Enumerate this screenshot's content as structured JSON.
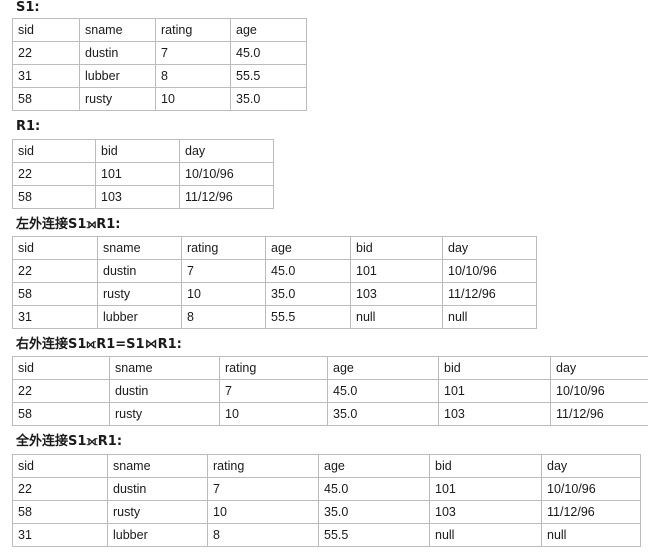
{
  "sections": [
    {
      "heading": "S1:",
      "columns": [
        "sid",
        "sname",
        "rating",
        "age"
      ],
      "rows": [
        [
          "22",
          "dustin",
          "7",
          "45.0"
        ],
        [
          "31",
          "lubber",
          "8",
          "55.5"
        ],
        [
          "58",
          "rusty",
          "10",
          "35.0"
        ]
      ]
    },
    {
      "heading": "R1:",
      "columns": [
        "sid",
        "bid",
        "day"
      ],
      "rows": [
        [
          "22",
          "101",
          "10/10/96"
        ],
        [
          "58",
          "103",
          "11/12/96"
        ]
      ]
    },
    {
      "heading": "左外连接S1⟕R1:",
      "columns": [
        "sid",
        "sname",
        "rating",
        "age",
        "bid",
        "day"
      ],
      "rows": [
        [
          "22",
          "dustin",
          "7",
          "45.0",
          "101",
          "10/10/96"
        ],
        [
          "58",
          "rusty",
          "10",
          "35.0",
          "103",
          "11/12/96"
        ],
        [
          "31",
          "lubber",
          "8",
          "55.5",
          "null",
          "null"
        ]
      ]
    },
    {
      "heading": "右外连接S1⟖R1=S1⋈R1:",
      "columns": [
        "sid",
        "sname",
        "rating",
        "age",
        "bid",
        "day"
      ],
      "rows": [
        [
          "22",
          "dustin",
          "7",
          "45.0",
          "101",
          "10/10/96"
        ],
        [
          "58",
          "rusty",
          "10",
          "35.0",
          "103",
          "11/12/96"
        ]
      ]
    },
    {
      "heading": "全外连接S1⟗R1:",
      "columns": [
        "sid",
        "sname",
        "rating",
        "age",
        "bid",
        "day"
      ],
      "rows": [
        [
          "22",
          "dustin",
          "7",
          "45.0",
          "101",
          "10/10/96"
        ],
        [
          "58",
          "rusty",
          "10",
          "35.0",
          "103",
          "11/12/96"
        ],
        [
          "31",
          "lubber",
          "8",
          "55.5",
          "null",
          "null"
        ]
      ]
    }
  ]
}
